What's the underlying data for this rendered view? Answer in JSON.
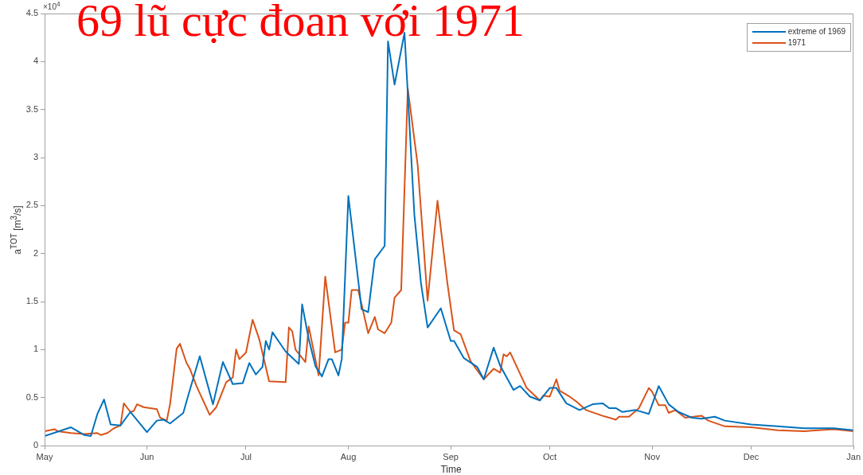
{
  "chart_data": {
    "type": "line",
    "title": "69 lũ cực đoan với 1971",
    "xlabel": "Time",
    "ylabel": "a$^{TOT}$ [m$^{3}$/s]",
    "annotations": [
      "×10$^{4}$"
    ],
    "xlim": [
      "1969-05-01",
      "1970-01-01"
    ],
    "xticks": [
      {
        "value": "1969-05-01",
        "label": "May"
      },
      {
        "value": "1969-06-01",
        "label": "Jun"
      },
      {
        "value": "1969-07-01",
        "label": "Jul"
      },
      {
        "value": "1969-08-01",
        "label": "Aug"
      },
      {
        "value": "1969-09-01",
        "label": "Sep"
      },
      {
        "value": "1969-10-01",
        "label": "Oct"
      },
      {
        "value": "1969-11-01",
        "label": "Nov"
      },
      {
        "value": "1969-12-01",
        "label": "Dec"
      },
      {
        "value": "1970-01-01",
        "label": "Jan"
      }
    ],
    "ylim": [
      0,
      4.5
    ],
    "yticks": [
      0,
      0.5,
      1,
      1.5,
      2,
      2.5,
      3,
      3.5,
      4,
      4.5
    ],
    "grid": false,
    "legend": "top right",
    "marker": "none",
    "line_style": "solid",
    "series": [
      {
        "name": "extreme of 1969",
        "color": "#0072bd",
        "x": [
          "1969-05-01",
          "1969-05-09",
          "1969-05-13",
          "1969-05-15",
          "1969-05-17",
          "1969-05-19",
          "1969-05-21",
          "1969-05-24",
          "1969-05-27",
          "1969-06-01",
          "1969-06-04",
          "1969-06-06",
          "1969-06-08",
          "1969-06-12",
          "1969-06-14",
          "1969-06-17",
          "1969-06-21",
          "1969-06-24",
          "1969-06-27",
          "1969-06-30",
          "1969-07-02",
          "1969-07-04",
          "1969-07-06",
          "1969-07-07",
          "1969-07-08",
          "1969-07-09",
          "1969-07-13",
          "1969-07-17",
          "1969-07-18",
          "1969-07-20",
          "1969-07-22",
          "1969-07-24",
          "1969-07-26",
          "1969-07-27",
          "1969-07-29",
          "1969-07-30",
          "1969-08-01",
          "1969-08-05",
          "1969-08-07",
          "1969-08-09",
          "1969-08-12",
          "1969-08-13",
          "1969-08-15",
          "1969-08-18",
          "1969-08-21",
          "1969-08-23",
          "1969-08-25",
          "1969-08-29",
          "1969-09-01",
          "1969-09-02",
          "1969-09-05",
          "1969-09-09",
          "1969-09-11",
          "1969-09-14",
          "1969-09-16",
          "1969-09-20",
          "1969-09-22",
          "1969-09-25",
          "1969-09-28",
          "1969-10-01",
          "1969-10-03",
          "1969-10-06",
          "1969-10-10",
          "1969-10-14",
          "1969-10-17",
          "1969-10-19",
          "1969-10-21",
          "1969-10-23",
          "1969-10-27",
          "1969-10-31",
          "1969-11-03",
          "1969-11-06",
          "1969-11-09",
          "1969-11-13",
          "1969-11-16",
          "1969-11-20",
          "1969-11-23",
          "1969-12-01",
          "1969-12-09",
          "1969-12-17",
          "1969-12-26",
          "1970-01-01"
        ],
        "values": [
          0.1,
          0.19,
          0.11,
          0.1,
          0.33,
          0.48,
          0.22,
          0.21,
          0.35,
          0.14,
          0.26,
          0.27,
          0.23,
          0.34,
          0.58,
          0.93,
          0.43,
          0.87,
          0.64,
          0.65,
          0.86,
          0.74,
          0.82,
          1.09,
          1.0,
          1.18,
          0.98,
          0.85,
          1.47,
          1.11,
          0.83,
          0.72,
          0.9,
          0.9,
          0.73,
          0.9,
          2.6,
          1.42,
          1.39,
          1.94,
          2.08,
          4.21,
          3.76,
          4.3,
          2.4,
          1.69,
          1.23,
          1.43,
          1.09,
          1.09,
          0.91,
          0.82,
          0.69,
          1.02,
          0.83,
          0.58,
          0.62,
          0.51,
          0.47,
          0.6,
          0.6,
          0.44,
          0.37,
          0.43,
          0.44,
          0.39,
          0.39,
          0.35,
          0.37,
          0.33,
          0.62,
          0.43,
          0.35,
          0.29,
          0.28,
          0.3,
          0.26,
          0.22,
          0.2,
          0.18,
          0.18,
          0.16
        ]
      },
      {
        "name": "1971",
        "color": "#d95319",
        "x": [
          "1969-05-01",
          "1969-05-04",
          "1969-05-05",
          "1969-05-09",
          "1969-05-13",
          "1969-05-17",
          "1969-05-18",
          "1969-05-20",
          "1969-05-22",
          "1969-05-24",
          "1969-05-25",
          "1969-05-27",
          "1969-05-28",
          "1969-05-29",
          "1969-05-31",
          "1969-06-04",
          "1969-06-05",
          "1969-06-07",
          "1969-06-08",
          "1969-06-10",
          "1969-06-11",
          "1969-06-13",
          "1969-06-14",
          "1969-06-16",
          "1969-06-20",
          "1969-06-22",
          "1969-06-25",
          "1969-06-27",
          "1969-06-28",
          "1969-06-29",
          "1969-07-01",
          "1969-07-03",
          "1969-07-05",
          "1969-07-08",
          "1969-07-13",
          "1969-07-14",
          "1969-07-15",
          "1969-07-16",
          "1969-07-19",
          "1969-07-20",
          "1969-07-23",
          "1969-07-25",
          "1969-07-28",
          "1969-07-30",
          "1969-07-31",
          "1969-08-01",
          "1969-08-02",
          "1969-08-04",
          "1969-08-07",
          "1969-08-09",
          "1969-08-10",
          "1969-08-12",
          "1969-08-14",
          "1969-08-15",
          "1969-08-17",
          "1969-08-19",
          "1969-08-22",
          "1969-08-25",
          "1969-08-28",
          "1969-08-31",
          "1969-09-02",
          "1969-09-04",
          "1969-09-07",
          "1969-09-11",
          "1969-09-14",
          "1969-09-16",
          "1969-09-17",
          "1969-09-18",
          "1969-09-19",
          "1969-09-24",
          "1969-09-28",
          "1969-09-29",
          "1969-10-01",
          "1969-10-03",
          "1969-10-04",
          "1969-10-07",
          "1969-10-09",
          "1969-10-12",
          "1969-10-17",
          "1969-10-21",
          "1969-10-22",
          "1969-10-25",
          "1969-10-28",
          "1969-10-31",
          "1969-11-01",
          "1969-11-03",
          "1969-11-05",
          "1969-11-06",
          "1969-11-08",
          "1969-11-11",
          "1969-11-16",
          "1969-11-18",
          "1969-11-23",
          "1969-12-01",
          "1969-12-09",
          "1969-12-17",
          "1969-12-26",
          "1970-01-01"
        ],
        "values": [
          0.15,
          0.17,
          0.15,
          0.13,
          0.12,
          0.13,
          0.11,
          0.13,
          0.18,
          0.21,
          0.44,
          0.35,
          0.36,
          0.43,
          0.4,
          0.38,
          0.29,
          0.26,
          0.43,
          1.01,
          1.06,
          0.86,
          0.8,
          0.62,
          0.32,
          0.4,
          0.66,
          0.71,
          1.0,
          0.9,
          0.97,
          1.31,
          1.11,
          0.67,
          0.66,
          1.23,
          1.19,
          1.0,
          0.87,
          1.24,
          0.73,
          1.76,
          0.97,
          1.0,
          1.28,
          1.28,
          1.62,
          1.62,
          1.17,
          1.34,
          1.21,
          1.17,
          1.28,
          1.54,
          1.62,
          3.72,
          2.92,
          1.51,
          2.55,
          1.69,
          1.2,
          1.16,
          0.88,
          0.69,
          0.8,
          0.76,
          0.95,
          0.93,
          0.97,
          0.6,
          0.47,
          0.52,
          0.51,
          0.69,
          0.57,
          0.51,
          0.46,
          0.37,
          0.31,
          0.27,
          0.3,
          0.3,
          0.39,
          0.6,
          0.56,
          0.42,
          0.42,
          0.34,
          0.37,
          0.29,
          0.31,
          0.26,
          0.2,
          0.19,
          0.16,
          0.15,
          0.17,
          0.15
        ]
      }
    ]
  }
}
